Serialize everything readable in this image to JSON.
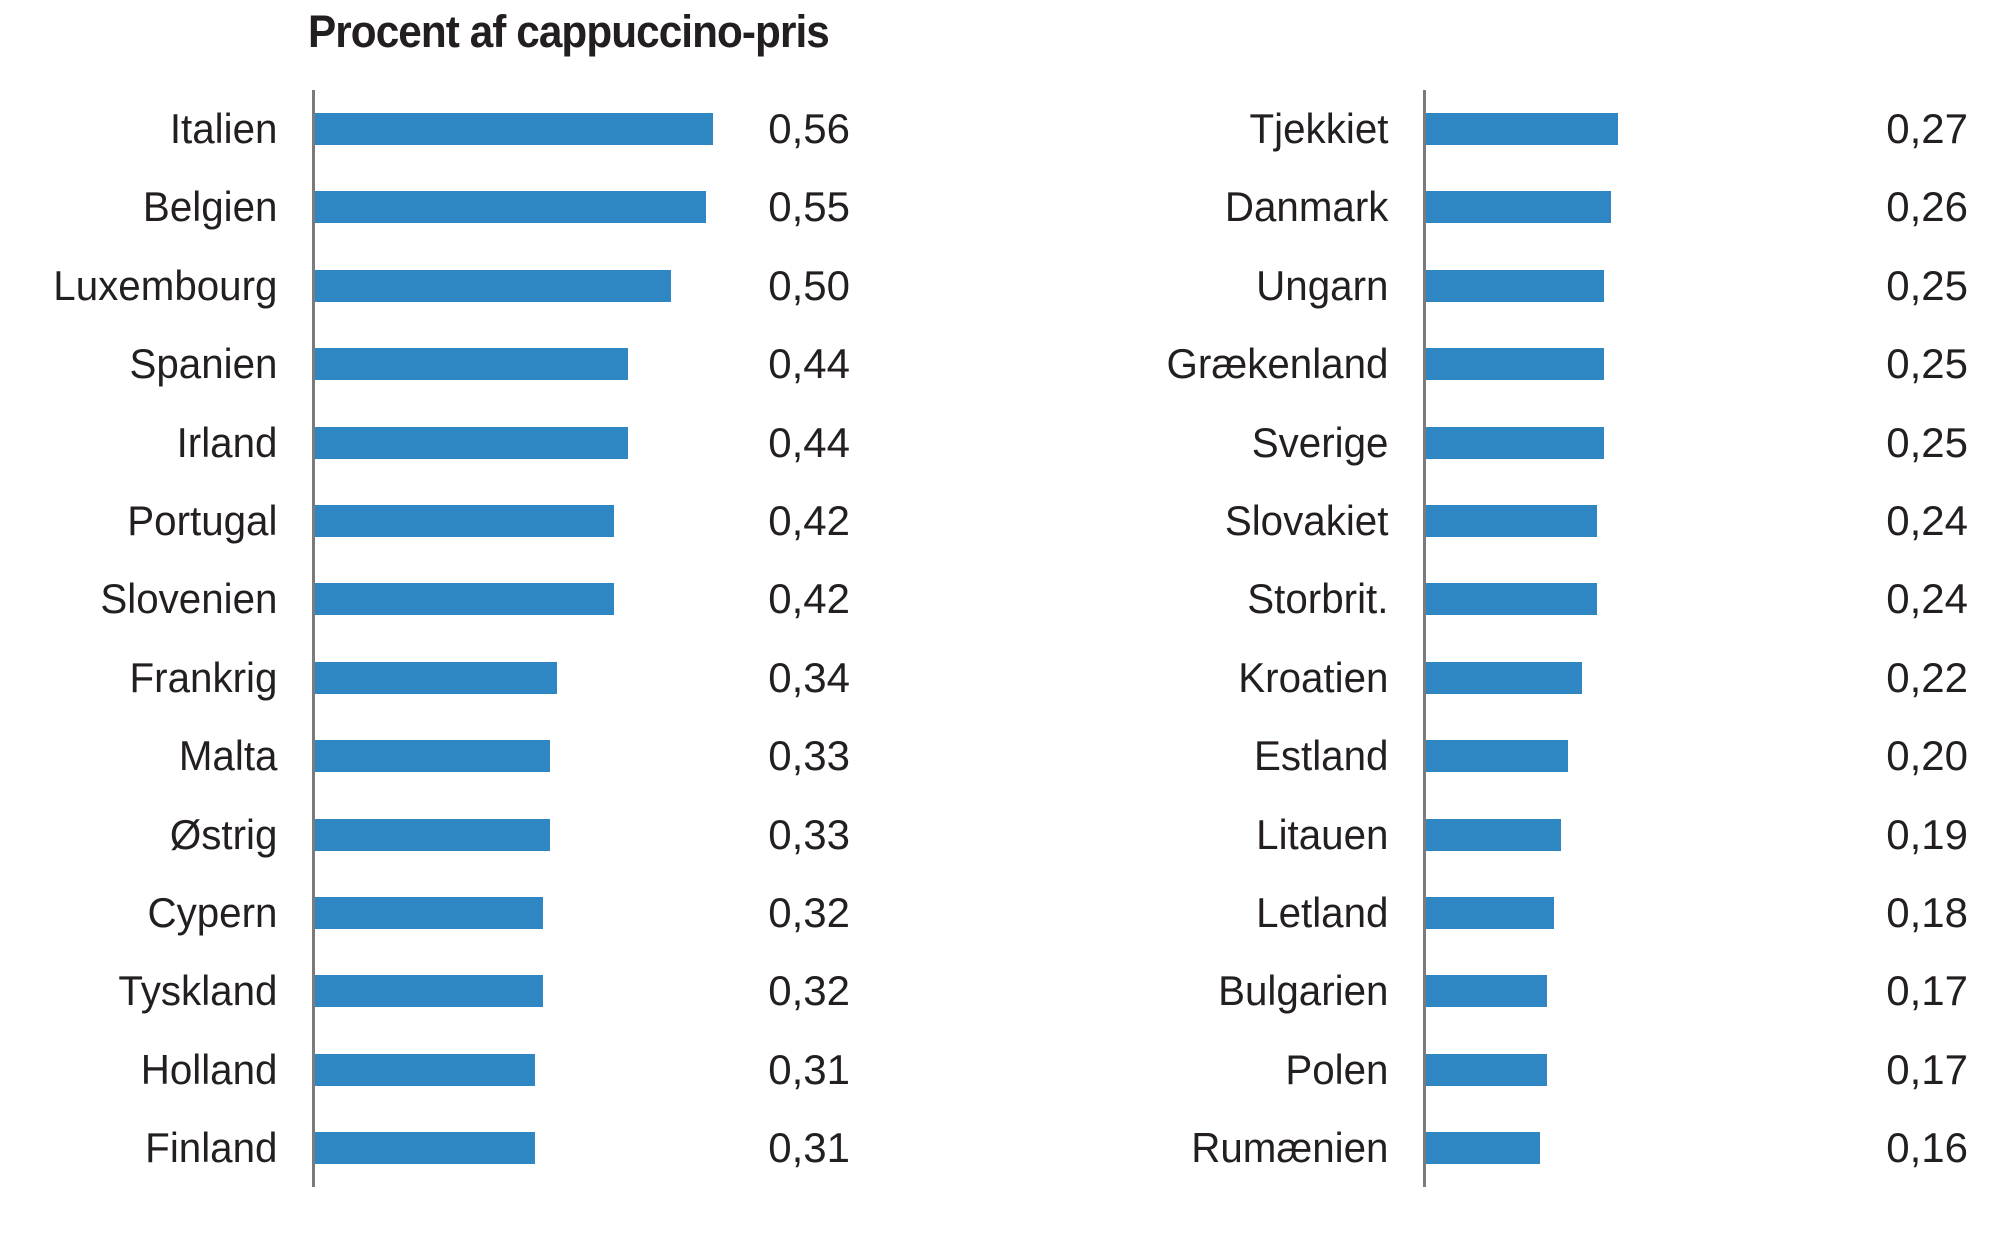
{
  "title": "Procent af cappuccino-pris",
  "chart_data": {
    "type": "bar",
    "orientation": "horizontal",
    "title": "Procent af cappuccino-pris",
    "xlabel": "",
    "ylabel": "",
    "xlim": [
      0,
      0.6
    ],
    "grid": false,
    "legend": "none",
    "bar_color": "#2E86C3",
    "axis_color": "#7B7B7B",
    "text_color": "#231F20",
    "decimal_separator": ",",
    "columns": [
      {
        "name": "left-column",
        "categories": [
          "Italien",
          "Belgien",
          "Luxembourg",
          "Spanien",
          "Irland",
          "Portugal",
          "Slovenien",
          "Frankrig",
          "Malta",
          "Østrig",
          "Cypern",
          "Tyskland",
          "Holland",
          "Finland"
        ],
        "values": [
          0.56,
          0.55,
          0.5,
          0.44,
          0.44,
          0.42,
          0.42,
          0.34,
          0.33,
          0.33,
          0.32,
          0.32,
          0.31,
          0.31
        ],
        "value_labels": [
          "0,56",
          "0,55",
          "0,50",
          "0,44",
          "0,44",
          "0,42",
          "0,42",
          "0,34",
          "0,33",
          "0,33",
          "0,32",
          "0,32",
          "0,31",
          "0,31"
        ]
      },
      {
        "name": "right-column",
        "categories": [
          "Tjekkiet",
          "Danmark",
          "Ungarn",
          "Grækenland",
          "Sverige",
          "Slovakiet",
          "Storbrit.",
          "Kroatien",
          "Estland",
          "Litauen",
          "Letland",
          "Bulgarien",
          "Polen",
          "Rumænien"
        ],
        "values": [
          0.27,
          0.26,
          0.25,
          0.25,
          0.25,
          0.24,
          0.24,
          0.22,
          0.2,
          0.19,
          0.18,
          0.17,
          0.17,
          0.16
        ],
        "value_labels": [
          "0,27",
          "0,26",
          "0,25",
          "0,25",
          "0,25",
          "0,24",
          "0,24",
          "0,22",
          "0,20",
          "0,19",
          "0,18",
          "0,17",
          "0,17",
          "0,16"
        ]
      }
    ]
  }
}
